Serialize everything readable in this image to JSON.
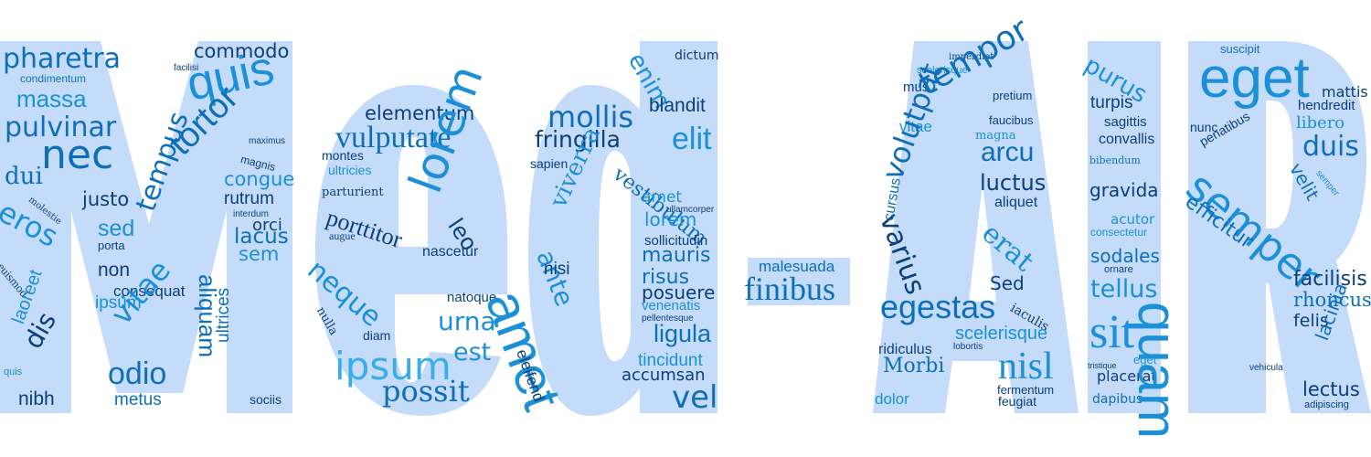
{
  "title_shape_text": "Med-AIR",
  "colors": {
    "shape_fill": "#c4dcfa",
    "dark": "#0a3f7a",
    "mid": "#0e6fb8",
    "bright": "#1b90d8",
    "light": "#38aee8"
  },
  "words": [
    "pharetra",
    "commodo",
    "facilisi",
    "condimentum",
    "massa",
    "quis",
    "pulvinar",
    "maximus",
    "nec",
    "magnis",
    "tortor",
    "dui",
    "congue",
    "eros",
    "molestie",
    "justo",
    "rutrum",
    "interdum",
    "sed",
    "orci",
    "porta",
    "lacus",
    "tempus",
    "sem",
    "euismod",
    "non",
    "consequat",
    "aliquam",
    "ipsum",
    "laoreet",
    "vitae",
    "dis",
    "ultrices",
    "quis",
    "odio",
    "metus",
    "nibh",
    "sociis",
    "elementum",
    "vulputate",
    "montes",
    "ultricies",
    "lorem",
    "parturient",
    "porttitor",
    "augue",
    "leo",
    "nascetur",
    "neque",
    "natoque",
    "urna",
    "nulla",
    "diam",
    "ipsum",
    "est",
    "possit",
    "mollis",
    "fringilla",
    "sapien",
    "viverra",
    "vestibulum",
    "ante",
    "nisi",
    "amet",
    "eleifend",
    "dictum",
    "enim",
    "blandit",
    "elit",
    "amet",
    "ullamcorper",
    "lorem",
    "sollicitudin",
    "mauris",
    "risus",
    "posuere",
    "venenatis",
    "pellentesque",
    "ligula",
    "tincidunt",
    "accumsan",
    "vel",
    "malesuada",
    "finibus",
    "imperdiet",
    "scelerisque",
    "mus",
    "tempor",
    "pretium",
    "vitae",
    "faucibus",
    "magna",
    "arcu",
    "volutpat",
    "luctus",
    "aliquet",
    "varius",
    "cursus",
    "erat",
    "Sed",
    "egestas",
    "iaculis",
    "scelerisque",
    "ridiculus",
    "lobortis",
    "Morbi",
    "nisl",
    "fermentum",
    "dolor",
    "feugiat",
    "purus",
    "turpis",
    "sagittis",
    "convallis",
    "bibendum",
    "gravida",
    "acutor",
    "consectetur",
    "sodales",
    "ornare",
    "tellus",
    "sit",
    "tristique",
    "eget",
    "placerat",
    "dapibus",
    "suscipit",
    "eget",
    "mattis",
    "hendredit",
    "nunc",
    "penatibus",
    "libero",
    "duis",
    "semper",
    "velit",
    "semper",
    "efficitur",
    "quam",
    "facilisis",
    "rhoncus",
    "felis",
    "lacinia",
    "vehicula",
    "lectus",
    "adipiscing"
  ]
}
